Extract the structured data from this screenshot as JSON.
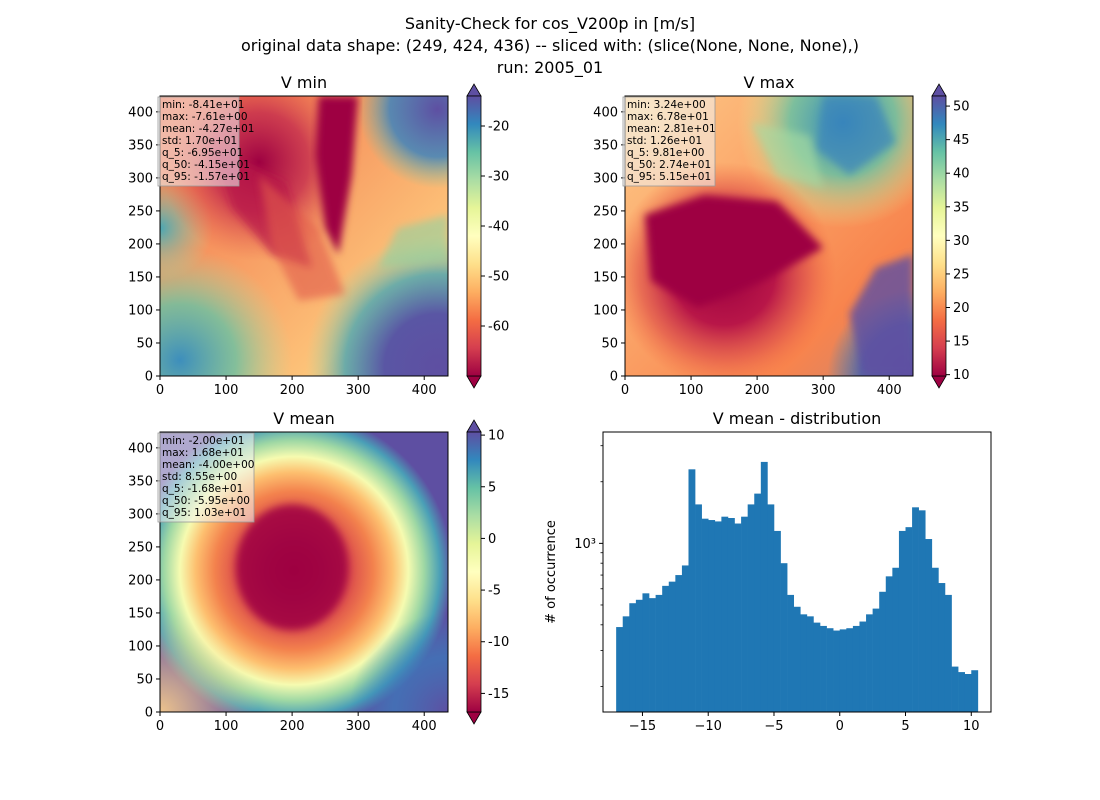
{
  "figure": {
    "title_lines": [
      "Sanity-Check for cos_V200p in [m/s]",
      "original data shape: (249, 424, 436) -- sliced with: (slice(None, None, None),)",
      "run: 2005_01"
    ]
  },
  "colormap": {
    "name": "Spectral",
    "stops": [
      "#9e0142",
      "#d53e4f",
      "#f46d43",
      "#fdae61",
      "#fee08b",
      "#ffffbf",
      "#e6f598",
      "#abdda4",
      "#66c2a5",
      "#3288bd",
      "#5e4fa2"
    ]
  },
  "chart_data": [
    {
      "type": "heatmap",
      "title": "V min",
      "x_ticks": [
        "0",
        "100",
        "200",
        "300",
        "400"
      ],
      "y_ticks": [
        "0",
        "50",
        "100",
        "150",
        "200",
        "250",
        "300",
        "350",
        "400"
      ],
      "xlim": [
        0,
        436
      ],
      "ylim": [
        0,
        424
      ],
      "colorbar": {
        "vmin": -70,
        "vmax": -14,
        "ticks": [
          "-20",
          "-30",
          "-40",
          "-50",
          "-60"
        ],
        "tick_values": [
          -20,
          -30,
          -40,
          -50,
          -60
        ],
        "extend": "both"
      },
      "stats": [
        "min: -8.41e+01",
        "max: -7.61e+00",
        "mean: -4.27e+01",
        "std: 1.70e+01",
        "q_5: -6.95e+01",
        "q_50: -4.15e+01",
        "q_95: -1.57e+01"
      ]
    },
    {
      "type": "heatmap",
      "title": "V max",
      "x_ticks": [
        "0",
        "100",
        "200",
        "300",
        "400"
      ],
      "y_ticks": [
        "0",
        "50",
        "100",
        "150",
        "200",
        "250",
        "300",
        "350",
        "400"
      ],
      "xlim": [
        0,
        436
      ],
      "ylim": [
        0,
        424
      ],
      "colorbar": {
        "vmin": 9.8,
        "vmax": 51.5,
        "ticks": [
          "10",
          "15",
          "20",
          "25",
          "30",
          "35",
          "40",
          "45",
          "50"
        ],
        "tick_values": [
          10,
          15,
          20,
          25,
          30,
          35,
          40,
          45,
          50
        ],
        "extend": "both"
      },
      "stats": [
        "min: 3.24e+00",
        "max: 6.78e+01",
        "mean: 2.81e+01",
        "std: 1.26e+01",
        "q_5: 9.81e+00",
        "q_50: 2.74e+01",
        "q_95: 5.15e+01"
      ]
    },
    {
      "type": "heatmap",
      "title": "V mean",
      "x_ticks": [
        "0",
        "100",
        "200",
        "300",
        "400"
      ],
      "y_ticks": [
        "0",
        "50",
        "100",
        "150",
        "200",
        "250",
        "300",
        "350",
        "400"
      ],
      "xlim": [
        0,
        436
      ],
      "ylim": [
        0,
        424
      ],
      "colorbar": {
        "vmin": -16.8,
        "vmax": 10.3,
        "ticks": [
          "10",
          "5",
          "0",
          "-5",
          "-10",
          "-15"
        ],
        "tick_values": [
          10,
          5,
          0,
          -5,
          -10,
          -15
        ],
        "extend": "both"
      },
      "stats": [
        "min: -2.00e+01",
        "max: 1.68e+01",
        "mean: -4.00e+00",
        "std: 8.55e+00",
        "q_5: -1.68e+01",
        "q_50: -5.95e+00",
        "q_95: 1.03e+01"
      ]
    },
    {
      "type": "bar",
      "title": "V mean - distribution",
      "ylabel": "# of occurrence",
      "y_scale": "log",
      "ylim": [
        150,
        3500
      ],
      "xlim": [
        -18,
        11.5
      ],
      "x_ticks": [
        "−15",
        "−10",
        "−5",
        "0",
        "5",
        "10"
      ],
      "x_tick_values": [
        -15,
        -10,
        -5,
        0,
        5,
        10
      ],
      "y_ticks": [
        "10³"
      ],
      "y_tick_values": [
        1000
      ],
      "bar_color": "#1f77b4",
      "bins": [
        [
          -16.75,
          390
        ],
        [
          -16.25,
          440
        ],
        [
          -15.75,
          510
        ],
        [
          -15.25,
          530
        ],
        [
          -14.75,
          570
        ],
        [
          -14.25,
          540
        ],
        [
          -13.75,
          560
        ],
        [
          -13.25,
          620
        ],
        [
          -12.75,
          650
        ],
        [
          -12.25,
          700
        ],
        [
          -11.75,
          780
        ],
        [
          -11.25,
          2300
        ],
        [
          -10.75,
          1550
        ],
        [
          -10.25,
          1320
        ],
        [
          -9.75,
          1300
        ],
        [
          -9.25,
          1280
        ],
        [
          -8.75,
          1350
        ],
        [
          -8.25,
          1330
        ],
        [
          -7.75,
          1250
        ],
        [
          -7.25,
          1350
        ],
        [
          -6.75,
          1550
        ],
        [
          -6.25,
          1750
        ],
        [
          -5.75,
          2500
        ],
        [
          -5.25,
          1550
        ],
        [
          -4.75,
          1150
        ],
        [
          -4.25,
          800
        ],
        [
          -3.75,
          560
        ],
        [
          -3.25,
          490
        ],
        [
          -2.75,
          450
        ],
        [
          -2.25,
          440
        ],
        [
          -1.75,
          410
        ],
        [
          -1.25,
          395
        ],
        [
          -0.75,
          385
        ],
        [
          -0.25,
          375
        ],
        [
          0.25,
          380
        ],
        [
          0.75,
          385
        ],
        [
          1.25,
          395
        ],
        [
          1.75,
          415
        ],
        [
          2.25,
          450
        ],
        [
          2.75,
          480
        ],
        [
          3.25,
          580
        ],
        [
          3.75,
          690
        ],
        [
          4.25,
          760
        ],
        [
          4.75,
          1150
        ],
        [
          5.25,
          1200
        ],
        [
          5.75,
          1500
        ],
        [
          6.25,
          1450
        ],
        [
          6.75,
          1050
        ],
        [
          7.25,
          760
        ],
        [
          7.75,
          640
        ],
        [
          8.25,
          560
        ],
        [
          8.75,
          250
        ],
        [
          9.25,
          235
        ],
        [
          9.75,
          230
        ],
        [
          10.25,
          240
        ]
      ]
    }
  ]
}
